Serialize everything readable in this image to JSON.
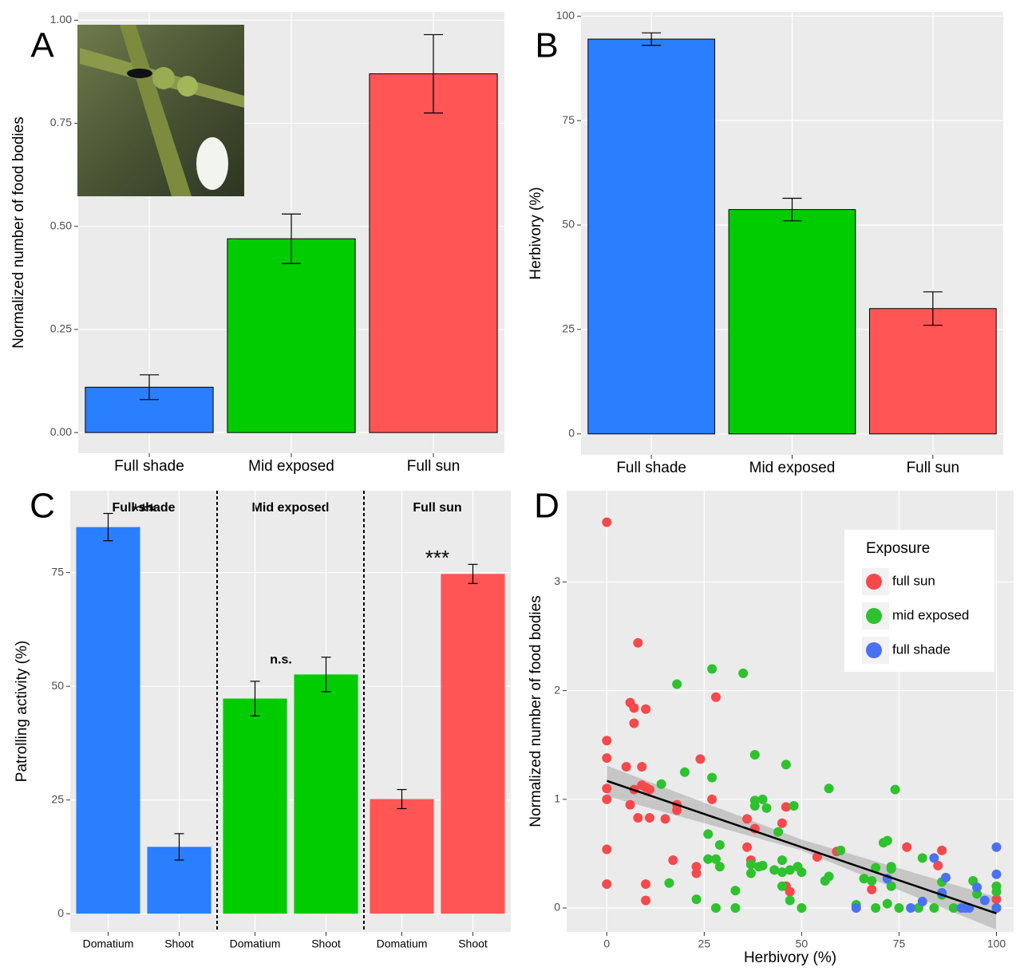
{
  "chart_data": [
    {
      "type": "bar",
      "panel_label": "A",
      "y_label": "Normalized number of food bodies",
      "categories": [
        "Full shade",
        "Mid exposed",
        "Full sun"
      ],
      "values": [
        0.11,
        0.47,
        0.87
      ],
      "errors": [
        0.03,
        0.06,
        0.095
      ],
      "colors": [
        "#2a7fff",
        "#00cc00",
        "#ff5555"
      ],
      "ylim": [
        -0.05,
        1.02
      ],
      "yticks": [
        {
          "value": 0,
          "label": "0.00"
        },
        {
          "value": 0.25,
          "label": "0.25"
        },
        {
          "value": 0.5,
          "label": "0.50"
        },
        {
          "value": 0.75,
          "label": "0.75"
        },
        {
          "value": 1,
          "label": "1.00"
        }
      ],
      "grid": true
    },
    {
      "type": "bar",
      "panel_label": "B",
      "y_label": "Herbivory (%)",
      "categories": [
        "Full shade",
        "Mid exposed",
        "Full sun"
      ],
      "values": [
        94.5,
        53.7,
        30
      ],
      "errors": [
        1.5,
        2.7,
        4
      ],
      "colors": [
        "#2a7fff",
        "#00cc00",
        "#ff5555"
      ],
      "ylim": [
        -5,
        101
      ],
      "yticks": [
        0,
        25,
        50,
        75,
        100
      ],
      "grid": true
    },
    {
      "type": "facet-bar",
      "panel_label": "C",
      "y_label": "Patrolling activity (%)",
      "facets": [
        {
          "name": "Full shade",
          "categories": [
            "Domatium",
            "Shoot"
          ],
          "values": [
            85,
            14.7
          ],
          "errors": [
            3,
            2.9
          ],
          "color": "#2a7fff",
          "annotation": "***"
        },
        {
          "name": "Mid exposed",
          "categories": [
            "Domatium",
            "Shoot"
          ],
          "values": [
            47.3,
            52.6
          ],
          "errors": [
            3.8,
            3.8
          ],
          "color": "#00cc00",
          "annotation": "n.s."
        },
        {
          "name": "Full sun",
          "categories": [
            "Domatium",
            "Shoot"
          ],
          "values": [
            25.2,
            74.7
          ],
          "errors": [
            2.1,
            2.1
          ],
          "color": "#ff5555",
          "annotation": "***"
        }
      ],
      "ylim": [
        -4,
        93
      ],
      "yticks": [
        0,
        25,
        50,
        75
      ],
      "grid": true
    },
    {
      "type": "scatter",
      "panel_label": "D",
      "x_label": "Herbivory (%)",
      "y_label": "Normalized number of food bodies",
      "legend_title": "Exposure",
      "legend_position": "top-right",
      "series": [
        {
          "name": "full sun",
          "color": "#f5494c",
          "x": [
            0,
            0,
            0,
            0,
            0,
            0,
            0,
            5,
            6,
            6,
            7,
            7,
            7,
            8,
            8,
            9,
            9,
            10,
            10,
            10,
            10,
            11,
            11,
            15,
            17,
            18,
            18,
            23,
            23,
            24,
            27,
            28,
            36,
            36,
            37,
            38,
            45,
            46,
            46,
            47,
            54,
            59,
            68,
            77,
            85,
            86,
            100
          ],
          "y": [
            3.55,
            1.54,
            1.38,
            1.1,
            1.0,
            0.54,
            0.22,
            1.3,
            1.89,
            0.95,
            1.09,
            1.7,
            1.84,
            0.83,
            2.44,
            1.3,
            1.13,
            1.11,
            1.83,
            0.22,
            0.07,
            1.09,
            0.83,
            0.82,
            0.44,
            0.95,
            0.9,
            0.38,
            0.32,
            1.37,
            1.0,
            1.94,
            0.82,
            0.56,
            0.44,
            0.73,
            0.78,
            0.2,
            0.93,
            0.15,
            0.47,
            0.52,
            0.17,
            0.56,
            0.39,
            0.53,
            0.08
          ]
        },
        {
          "name": "mid exposed",
          "color": "#2ec22e",
          "x": [
            14,
            16,
            18,
            20,
            23,
            26,
            26,
            27,
            27,
            28,
            28,
            29,
            29,
            33,
            33,
            35,
            37,
            37,
            38,
            38,
            38,
            39,
            40,
            40,
            41,
            43,
            44,
            45,
            45,
            45,
            46,
            47,
            47,
            48,
            49,
            50,
            50,
            56,
            57,
            57,
            60,
            64,
            66,
            68,
            69,
            69,
            71,
            72,
            72,
            73,
            73,
            73,
            74,
            75,
            80,
            81,
            84,
            86,
            86,
            89,
            94,
            95,
            100,
            100,
            100
          ],
          "y": [
            1.14,
            0.23,
            2.06,
            1.25,
            0.08,
            0.68,
            0.45,
            2.2,
            1.2,
            0.45,
            0.0,
            0.38,
            0.58,
            0.0,
            0.16,
            2.16,
            0.4,
            0.32,
            1.41,
            0.99,
            0.94,
            0.38,
            0.39,
            1.0,
            0.92,
            0.35,
            0.7,
            0.44,
            0.33,
            0.2,
            1.32,
            0.07,
            0.35,
            0.94,
            0.38,
            0.33,
            0.0,
            0.25,
            1.1,
            0.29,
            0.53,
            0.03,
            0.27,
            0.25,
            0.37,
            0.0,
            0.6,
            0.62,
            0.04,
            0.38,
            0.36,
            0.2,
            1.09,
            0.0,
            0.0,
            0.46,
            0.0,
            0.12,
            0.24,
            0.0,
            0.25,
            0.13,
            0.0,
            0.15,
            0.2
          ]
        },
        {
          "name": "full shade",
          "color": "#4a72f0",
          "x": [
            64,
            72,
            78,
            81,
            84,
            86,
            87,
            91,
            92,
            93,
            95,
            97,
            100,
            100,
            100
          ],
          "y": [
            0,
            0.27,
            0,
            0.06,
            0.46,
            0.14,
            0.28,
            0,
            0,
            0,
            0.19,
            0.07,
            0.31,
            0.56,
            0
          ]
        }
      ],
      "trend": {
        "x": [
          0,
          100
        ],
        "y": [
          1.17,
          -0.05
        ]
      },
      "band": {
        "x": [
          0,
          50,
          100
        ],
        "low": [
          1.03,
          0.53,
          -0.2
        ],
        "high": [
          1.31,
          0.63,
          0.1
        ]
      },
      "xlim": [
        -10.3,
        104.4
      ],
      "xticks": [
        0,
        25,
        50,
        75,
        100
      ],
      "ylim": [
        -0.22,
        3.84
      ],
      "yticks": [
        0,
        1,
        2,
        3
      ],
      "grid": true
    }
  ]
}
